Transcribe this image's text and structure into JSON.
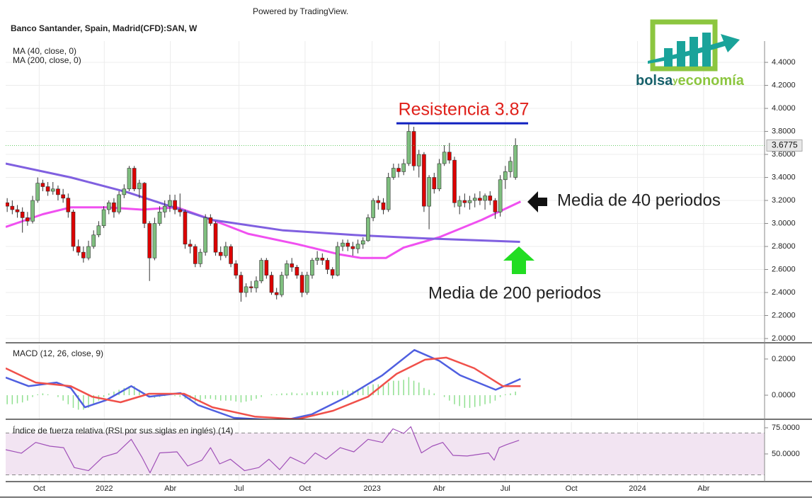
{
  "attribution": "Powered by TradingView.",
  "logo": {
    "part1": "bolsa",
    "part2": "y",
    "part3": "economía"
  },
  "chart_data": [
    {
      "type": "candlestick",
      "title": "Banco Santander, Spain, Madrid(CFD):SAN, W",
      "up_color": "#7fbf7f",
      "down_color": "#dd0000",
      "ylim": [
        1.963,
        4.585
      ],
      "yticks": [
        {
          "value": 2.0,
          "label": "2.0000"
        },
        {
          "value": 2.2,
          "label": "2.2000"
        },
        {
          "value": 2.4,
          "label": "2.4000"
        },
        {
          "value": 2.6,
          "label": "2.6000"
        },
        {
          "value": 2.8,
          "label": "2.8000"
        },
        {
          "value": 3.0,
          "label": "3.0000"
        },
        {
          "value": 3.2,
          "label": "3.2000"
        },
        {
          "value": 3.4,
          "label": "3.4000"
        },
        {
          "value": 3.6,
          "label": "3.6000"
        },
        {
          "value": 3.8,
          "label": "3.8000"
        },
        {
          "value": 4.0,
          "label": "4.0000"
        },
        {
          "value": 4.2,
          "label": "4.2000"
        },
        {
          "value": 4.4,
          "label": "4.4000"
        }
      ],
      "grid": true,
      "last_price": 3.6775,
      "candles": [
        [
          3.18,
          3.22,
          3.1,
          3.15
        ],
        [
          3.15,
          3.2,
          3.08,
          3.12
        ],
        [
          3.12,
          3.16,
          3.05,
          3.1
        ],
        [
          3.1,
          3.14,
          2.92,
          3.05
        ],
        [
          3.05,
          3.1,
          2.98,
          3.02
        ],
        [
          3.02,
          3.24,
          3.0,
          3.2
        ],
        [
          3.2,
          3.4,
          3.18,
          3.35
        ],
        [
          3.35,
          3.38,
          3.28,
          3.32
        ],
        [
          3.32,
          3.36,
          3.24,
          3.28
        ],
        [
          3.28,
          3.36,
          3.25,
          3.3
        ],
        [
          3.3,
          3.33,
          3.2,
          3.25
        ],
        [
          3.25,
          3.3,
          3.18,
          3.22
        ],
        [
          3.22,
          3.26,
          3.05,
          3.1
        ],
        [
          3.1,
          3.12,
          2.76,
          2.8
        ],
        [
          2.8,
          2.86,
          2.72,
          2.75
        ],
        [
          2.75,
          2.8,
          2.66,
          2.7
        ],
        [
          2.7,
          2.85,
          2.68,
          2.8
        ],
        [
          2.8,
          2.94,
          2.78,
          2.9
        ],
        [
          2.9,
          3.02,
          2.88,
          2.98
        ],
        [
          2.98,
          3.15,
          2.96,
          3.12
        ],
        [
          3.12,
          3.2,
          3.08,
          3.18
        ],
        [
          3.18,
          3.22,
          3.05,
          3.1
        ],
        [
          3.1,
          3.28,
          3.08,
          3.25
        ],
        [
          3.25,
          3.34,
          3.22,
          3.3
        ],
        [
          3.3,
          3.5,
          3.28,
          3.48
        ],
        [
          3.48,
          3.5,
          3.28,
          3.3
        ],
        [
          3.3,
          3.38,
          3.22,
          3.35
        ],
        [
          3.35,
          3.36,
          2.96,
          3.0
        ],
        [
          3.0,
          3.02,
          2.5,
          2.7
        ],
        [
          2.7,
          3.05,
          2.68,
          3.0
        ],
        [
          3.0,
          3.15,
          2.98,
          3.1
        ],
        [
          3.1,
          3.2,
          3.05,
          3.15
        ],
        [
          3.15,
          3.25,
          3.1,
          3.2
        ],
        [
          3.2,
          3.25,
          3.08,
          3.12
        ],
        [
          3.12,
          3.26,
          3.06,
          3.1
        ],
        [
          3.1,
          3.12,
          2.78,
          2.82
        ],
        [
          2.82,
          2.86,
          2.74,
          2.8
        ],
        [
          2.8,
          2.82,
          2.62,
          2.65
        ],
        [
          2.65,
          2.78,
          2.62,
          2.75
        ],
        [
          2.75,
          3.08,
          2.72,
          3.05
        ],
        [
          3.05,
          3.08,
          2.98,
          3.0
        ],
        [
          3.0,
          3.02,
          2.72,
          2.75
        ],
        [
          2.75,
          2.8,
          2.68,
          2.72
        ],
        [
          2.72,
          2.84,
          2.7,
          2.8
        ],
        [
          2.8,
          2.82,
          2.62,
          2.65
        ],
        [
          2.65,
          2.68,
          2.52,
          2.55
        ],
        [
          2.55,
          2.58,
          2.32,
          2.4
        ],
        [
          2.4,
          2.48,
          2.36,
          2.45
        ],
        [
          2.45,
          2.5,
          2.4,
          2.44
        ],
        [
          2.44,
          2.54,
          2.4,
          2.5
        ],
        [
          2.5,
          2.7,
          2.48,
          2.68
        ],
        [
          2.68,
          2.7,
          2.52,
          2.55
        ],
        [
          2.55,
          2.58,
          2.38,
          2.4
        ],
        [
          2.4,
          2.44,
          2.34,
          2.38
        ],
        [
          2.38,
          2.58,
          2.36,
          2.55
        ],
        [
          2.55,
          2.68,
          2.52,
          2.65
        ],
        [
          2.65,
          2.7,
          2.58,
          2.62
        ],
        [
          2.62,
          2.64,
          2.52,
          2.55
        ],
        [
          2.55,
          2.58,
          2.36,
          2.4
        ],
        [
          2.4,
          2.58,
          2.38,
          2.55
        ],
        [
          2.55,
          2.7,
          2.52,
          2.68
        ],
        [
          2.68,
          2.76,
          2.64,
          2.7
        ],
        [
          2.7,
          2.74,
          2.64,
          2.68
        ],
        [
          2.68,
          2.7,
          2.56,
          2.6
        ],
        [
          2.6,
          2.62,
          2.52,
          2.55
        ],
        [
          2.55,
          2.84,
          2.54,
          2.8
        ],
        [
          2.8,
          2.86,
          2.76,
          2.83
        ],
        [
          2.83,
          2.86,
          2.76,
          2.8
        ],
        [
          2.8,
          2.84,
          2.72,
          2.78
        ],
        [
          2.78,
          2.86,
          2.74,
          2.82
        ],
        [
          2.82,
          2.88,
          2.78,
          2.85
        ],
        [
          2.85,
          3.08,
          2.84,
          3.05
        ],
        [
          3.05,
          3.22,
          3.02,
          3.2
        ],
        [
          3.2,
          3.24,
          3.12,
          3.18
        ],
        [
          3.18,
          3.22,
          3.08,
          3.12
        ],
        [
          3.12,
          3.44,
          3.1,
          3.4
        ],
        [
          3.4,
          3.52,
          3.38,
          3.48
        ],
        [
          3.48,
          3.52,
          3.4,
          3.45
        ],
        [
          3.45,
          3.56,
          3.42,
          3.52
        ],
        [
          3.52,
          3.87,
          3.5,
          3.8
        ],
        [
          3.8,
          3.84,
          3.46,
          3.5
        ],
        [
          3.5,
          3.64,
          3.4,
          3.6
        ],
        [
          3.6,
          3.62,
          3.1,
          3.15
        ],
        [
          3.15,
          3.42,
          2.95,
          3.4
        ],
        [
          3.4,
          3.44,
          3.26,
          3.3
        ],
        [
          3.3,
          3.56,
          3.28,
          3.52
        ],
        [
          3.52,
          3.68,
          3.5,
          3.62
        ],
        [
          3.62,
          3.7,
          3.52,
          3.55
        ],
        [
          3.55,
          3.58,
          3.14,
          3.18
        ],
        [
          3.15,
          3.24,
          3.08,
          3.2
        ],
        [
          3.2,
          3.26,
          3.14,
          3.18
        ],
        [
          3.18,
          3.24,
          3.12,
          3.2
        ],
        [
          3.2,
          3.26,
          3.14,
          3.22
        ],
        [
          3.22,
          3.28,
          3.16,
          3.2
        ],
        [
          3.2,
          3.26,
          3.12,
          3.24
        ],
        [
          3.24,
          3.28,
          3.16,
          3.2
        ],
        [
          3.2,
          3.22,
          3.04,
          3.1
        ],
        [
          3.1,
          3.42,
          3.06,
          3.38
        ],
        [
          3.38,
          3.5,
          3.3,
          3.45
        ],
        [
          3.45,
          3.58,
          3.4,
          3.54
        ],
        [
          3.4,
          3.74,
          3.38,
          3.6775
        ]
      ],
      "series": [
        {
          "name": "MA (40, close, 0)",
          "color": "#f050f0",
          "x": [
            -0.3,
            7.0,
            12.5,
            19.5,
            26.5,
            33.4,
            40.4,
            47.4,
            57.1,
            65.5,
            69.6,
            74.5,
            78.0,
            85.0,
            93.3,
            101.0
          ],
          "values": [
            2.97,
            3.08,
            3.14,
            3.14,
            3.12,
            3.14,
            3.03,
            2.91,
            2.82,
            2.73,
            2.7,
            2.7,
            2.79,
            2.88,
            3.03,
            3.19
          ]
        },
        {
          "name": "MA (200, close, 0)",
          "color": "#8060e0",
          "x": [
            -0.3,
            12.5,
            23.7,
            40.4,
            54.3,
            68.2,
            82.2,
            100.9
          ],
          "values": [
            3.52,
            3.4,
            3.27,
            3.03,
            2.94,
            2.9,
            2.87,
            2.84
          ]
        }
      ],
      "annotations": [
        {
          "text": "Resistencia 3.87",
          "value": 3.87
        },
        {
          "text": "Media de 40 periodos"
        },
        {
          "text": "Media de 200 periodos"
        }
      ]
    },
    {
      "type": "line",
      "title": "MACD (12, 26, close, 9)",
      "ylim": [
        -0.133,
        0.278
      ],
      "yticks": [
        {
          "value": 0.0,
          "label": "0.0000"
        },
        {
          "value": 0.2,
          "label": "0.2000"
        }
      ],
      "histogram_color": "#90e090",
      "histogram": [
        -0.05,
        -0.05,
        -0.045,
        -0.04,
        -0.03,
        -0.01,
        0.005,
        0.01,
        0.005,
        0,
        -0.01,
        -0.03,
        -0.05,
        -0.07,
        -0.08,
        -0.08,
        -0.07,
        -0.05,
        -0.03,
        -0.01,
        0.01,
        0.02,
        0.03,
        0.04,
        0.05,
        0.05,
        0.03,
        0.01,
        -0.01,
        -0.015,
        -0.01,
        -0.005,
        0,
        -0.005,
        -0.01,
        -0.02,
        -0.03,
        -0.035,
        -0.03,
        -0.02,
        -0.02,
        -0.025,
        -0.03,
        -0.03,
        -0.03,
        -0.035,
        -0.04,
        -0.035,
        -0.03,
        -0.02,
        -0.01,
        0,
        0.005,
        0.005,
        0.01,
        0.01,
        0.015,
        0.01,
        0.01,
        0.015,
        0.02,
        0.02,
        0.02,
        0.02,
        0.02,
        0.025,
        0.03,
        0.025,
        0.025,
        0.03,
        0.04,
        0.05,
        0.06,
        0.06,
        0.055,
        0.07,
        0.08,
        0.08,
        0.085,
        0.1,
        0.08,
        0.07,
        0.04,
        0.03,
        0.01,
        0,
        -0.01,
        -0.03,
        -0.05,
        -0.06,
        -0.07,
        -0.07,
        -0.065,
        -0.06,
        -0.05,
        -0.045,
        -0.03,
        -0.01,
        0.005,
        0.01,
        0.02
      ],
      "series": [
        {
          "color": "#4f5fe0",
          "x": [
            -0.3,
            4.2,
            9.7,
            12.5,
            15.3,
            19.5,
            24.4,
            27.9,
            34.1,
            37.6,
            44.6,
            54.3,
            59.9,
            66.9,
            73.8,
            80.1,
            85.0,
            89.1,
            96.1,
            101.0
          ],
          "values": [
            0.098,
            0.05,
            0.07,
            0.04,
            -0.067,
            -0.027,
            0.05,
            -0.008,
            0.012,
            -0.055,
            -0.125,
            -0.14,
            -0.106,
            -0.008,
            0.11,
            0.25,
            0.19,
            0.11,
            0.03,
            0.09
          ]
        },
        {
          "color": "#f0504a",
          "x": [
            -0.3,
            5.6,
            12.5,
            16.7,
            22.3,
            27.9,
            34.8,
            40.4,
            48.7,
            57.1,
            64.1,
            71.0,
            76.6,
            82.2,
            86.4,
            91.9,
            97.5,
            101.0
          ],
          "values": [
            0.149,
            0.07,
            0.05,
            -0.008,
            -0.039,
            0.008,
            0.008,
            -0.067,
            -0.118,
            -0.133,
            -0.086,
            -0.008,
            0.118,
            0.196,
            0.208,
            0.149,
            0.05,
            0.05
          ]
        }
      ]
    },
    {
      "type": "line",
      "title": "Índice de fuerza relativa (RSI por sus siglas en inglés) (14)",
      "ylim": [
        23.6,
        80.4
      ],
      "yticks": [
        {
          "value": 50,
          "label": "50.0000"
        },
        {
          "value": 75,
          "label": "75.0000"
        }
      ],
      "bands": [
        30,
        70
      ],
      "xlim": [
        -0.3,
        149
      ],
      "xticks": [
        {
          "value": 6.3,
          "label": "Oct"
        },
        {
          "value": 19.1,
          "label": "2022"
        },
        {
          "value": 32.1,
          "label": "Abr"
        },
        {
          "value": 45.6,
          "label": "Jul"
        },
        {
          "value": 58.6,
          "label": "Oct"
        },
        {
          "value": 71.8,
          "label": "2023"
        },
        {
          "value": 85.0,
          "label": "Abr"
        },
        {
          "value": 98.0,
          "label": "Jul"
        },
        {
          "value": 111.0,
          "label": "Oct"
        },
        {
          "value": 124.0,
          "label": "2024"
        },
        {
          "value": 137.0,
          "label": "Abr"
        }
      ],
      "series": [
        {
          "color": "#a050b8",
          "x": [
            -0.3,
            2.8,
            5.6,
            8.4,
            11.1,
            13.2,
            16.0,
            18.8,
            21.6,
            24.4,
            26.5,
            28.1,
            30.0,
            33.4,
            35.5,
            38.3,
            40.0,
            41.8,
            43.9,
            46.7,
            49.5,
            51.5,
            53.6,
            55.7,
            58.5,
            60.6,
            62.7,
            65.5,
            68.2,
            71.0,
            73.8,
            75.9,
            78.0,
            79.4,
            81.5,
            83.6,
            85.7,
            87.7,
            90.5,
            94.7,
            95.8,
            96.8,
            98.2,
            100.7
          ],
          "values": [
            54,
            50.7,
            61,
            57.4,
            56,
            37,
            34,
            47,
            51,
            64,
            47,
            32,
            51,
            52,
            38.5,
            44,
            56,
            40.5,
            45,
            34,
            37,
            45,
            35,
            47,
            40.5,
            51,
            45,
            56,
            52,
            64,
            61,
            74,
            69.6,
            76,
            51,
            57.4,
            61,
            48.6,
            48,
            51,
            44,
            56,
            58.8,
            63
          ]
        }
      ]
    }
  ]
}
